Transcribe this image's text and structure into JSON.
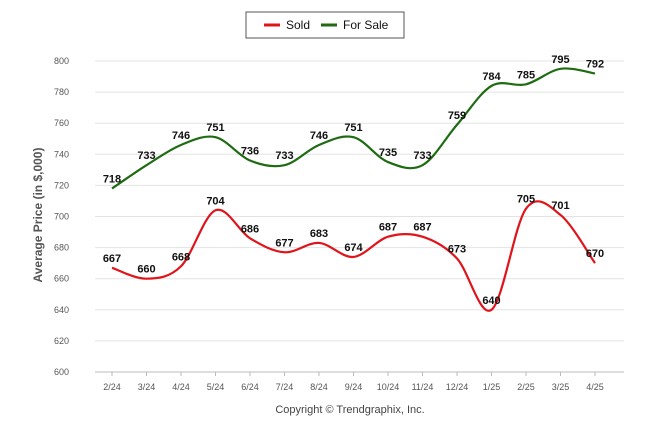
{
  "chart_data": {
    "type": "line",
    "categories": [
      "2/24",
      "3/24",
      "4/24",
      "5/24",
      "6/24",
      "7/24",
      "8/24",
      "9/24",
      "10/24",
      "11/24",
      "12/24",
      "1/25",
      "2/25",
      "3/25",
      "4/25"
    ],
    "series": [
      {
        "name": "Sold",
        "color": "#e0141b",
        "values": [
          667,
          660,
          668,
          704,
          686,
          677,
          683,
          674,
          687,
          687,
          673,
          640,
          705,
          701,
          670
        ]
      },
      {
        "name": "For Sale",
        "color": "#1e6b12",
        "values": [
          718,
          733,
          746,
          751,
          736,
          733,
          746,
          751,
          735,
          733,
          759,
          784,
          785,
          795,
          792
        ]
      }
    ],
    "title": "",
    "xlabel": "",
    "ylabel": "Average Price (in $,000)",
    "ylim": [
      600,
      800
    ],
    "yticks": [
      600,
      620,
      640,
      660,
      680,
      700,
      720,
      740,
      760,
      780,
      800
    ],
    "grid": true,
    "legend": "top-center",
    "footer": "Copyright © Trendgraphix, Inc."
  }
}
